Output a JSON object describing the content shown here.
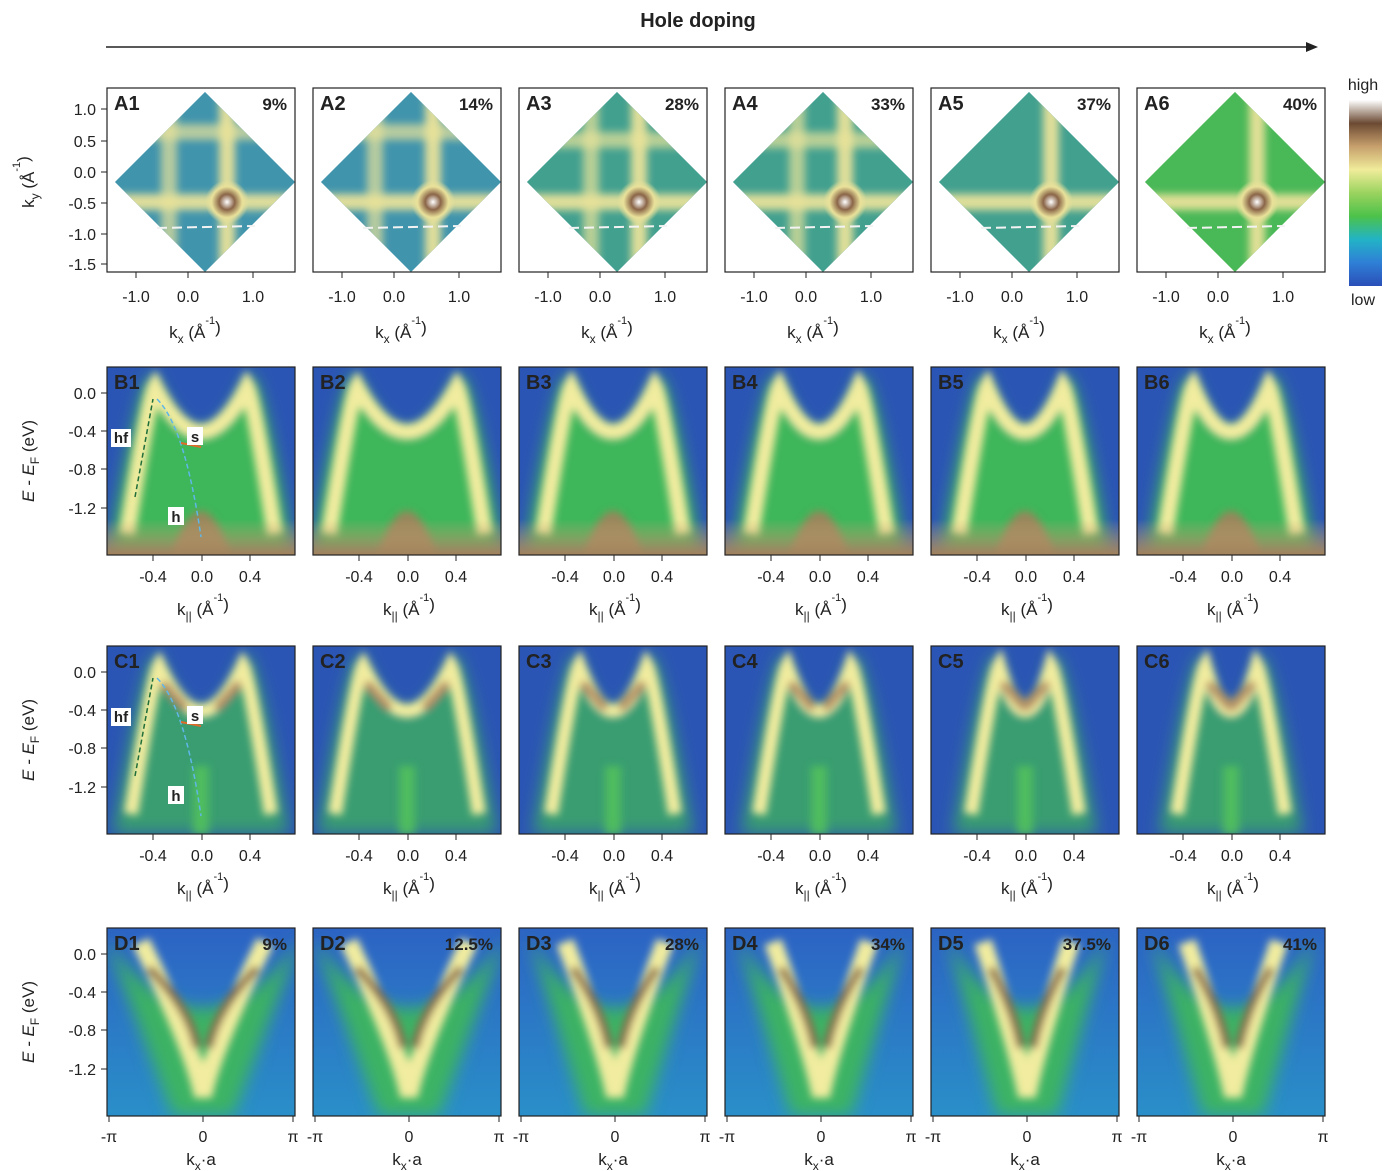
{
  "header": {
    "title": "Hole doping"
  },
  "colorbar": {
    "high": "high",
    "low": "low",
    "stops": [
      "#2a4fb8",
      "#2f7fd6",
      "#22b3c6",
      "#4cc24a",
      "#9ad35e",
      "#f0ec9a",
      "#c7a06d",
      "#6b4a33",
      "#ffffff"
    ]
  },
  "rowA": {
    "panels": [
      {
        "label": "A1",
        "doping": "9%"
      },
      {
        "label": "A2",
        "doping": "14%"
      },
      {
        "label": "A3",
        "doping": "28%"
      },
      {
        "label": "A4",
        "doping": "33%"
      },
      {
        "label": "A5",
        "doping": "37%"
      },
      {
        "label": "A6",
        "doping": "40%"
      }
    ],
    "ylabel_main": "k",
    "ylabel_sub": "y",
    "ylabel_unit": " (Å",
    "ylabel_sup": "-1",
    "ylabel_close": ")",
    "xlabel_main": "k",
    "xlabel_sub": "x",
    "xlabel_unit": " (Å",
    "xlabel_sup": "-1",
    "xlabel_close": ")",
    "yticks": [
      "1.0",
      "0.5",
      "0.0",
      "-0.5",
      "-1.0",
      "-1.5"
    ],
    "xticks": [
      "-1.0",
      "0.0",
      "1.0"
    ]
  },
  "rowB": {
    "panels": [
      {
        "label": "B1"
      },
      {
        "label": "B2"
      },
      {
        "label": "B3"
      },
      {
        "label": "B4"
      },
      {
        "label": "B5"
      },
      {
        "label": "B6"
      }
    ],
    "annotations": {
      "hf": "hf",
      "s": "s",
      "h": "h"
    }
  },
  "rowC": {
    "panels": [
      {
        "label": "C1"
      },
      {
        "label": "C2"
      },
      {
        "label": "C3"
      },
      {
        "label": "C4"
      },
      {
        "label": "C5"
      },
      {
        "label": "C6"
      }
    ],
    "annotations": {
      "hf": "hf",
      "s": "s",
      "h": "h"
    }
  },
  "rowBC": {
    "ylabel_main": "E - E",
    "ylabel_sub": "F",
    "ylabel_unit": " (eV)",
    "yticks": [
      "0.0",
      "-0.4",
      "-0.8",
      "-1.2"
    ],
    "xticks": [
      "-0.4",
      "0.0",
      "0.4"
    ],
    "xlabel_main": "k",
    "xlabel_sub": "||",
    "xlabel_unit": " (Å",
    "xlabel_sup": "-1",
    "xlabel_close": ")"
  },
  "rowD": {
    "panels": [
      {
        "label": "D1",
        "doping": "9%"
      },
      {
        "label": "D2",
        "doping": "12.5%"
      },
      {
        "label": "D3",
        "doping": "28%"
      },
      {
        "label": "D4",
        "doping": "34%"
      },
      {
        "label": "D5",
        "doping": "37.5%"
      },
      {
        "label": "D6",
        "doping": "41%"
      }
    ],
    "ylabel_main": "E - E",
    "ylabel_sub": "F",
    "ylabel_unit": " (eV)",
    "yticks": [
      "0.0",
      "-0.4",
      "-0.8",
      "-1.2"
    ],
    "xticks": [
      "-π",
      "0",
      "π"
    ],
    "xlabel_main": "k",
    "xlabel_sub": "x",
    "xlabel_rest": "·a"
  }
}
